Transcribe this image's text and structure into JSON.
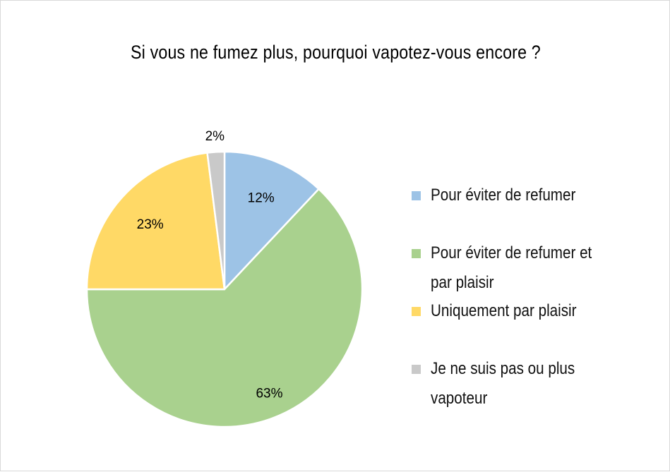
{
  "chart_data": {
    "type": "pie",
    "title": "Si vous ne fumez plus, pourquoi vapotez-vous encore ?",
    "slices": [
      {
        "label": "Pour éviter de refumer",
        "value": 12,
        "display": "12%",
        "color": "#9dc3e6"
      },
      {
        "label": "Pour éviter de refumer et par plaisir",
        "value": 63,
        "display": "63%",
        "color": "#a9d18e"
      },
      {
        "label": "Uniquement par plaisir",
        "value": 23,
        "display": "23%",
        "color": "#ffd966"
      },
      {
        "label": "Je ne suis pas ou plus vapoteur",
        "value": 2,
        "display": "2%",
        "color": "#c9c9c9"
      }
    ],
    "legend_position": "right",
    "start_angle": "12 o'clock, clockwise"
  }
}
